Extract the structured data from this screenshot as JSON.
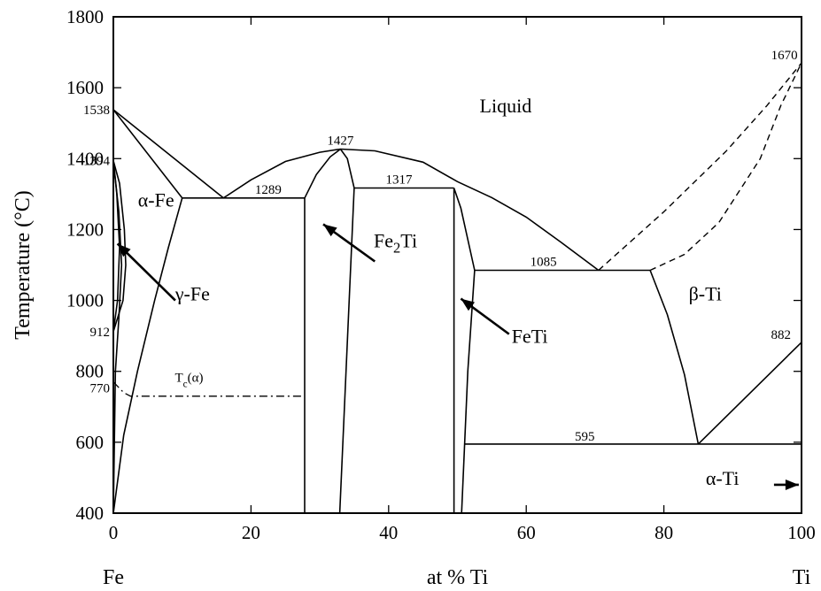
{
  "chart_data": {
    "type": "line",
    "title": "",
    "xlabel": "at % Ti",
    "ylabel": "Temperature (°C)",
    "xlim": [
      0,
      100
    ],
    "ylim": [
      400,
      1800
    ],
    "xticks": [
      0,
      20,
      40,
      60,
      80,
      100
    ],
    "yticks": [
      400,
      600,
      800,
      1000,
      1200,
      1400,
      1600,
      1800
    ],
    "endpoint_labels": {
      "left": "Fe",
      "right": "Ti"
    },
    "phase_labels": [
      {
        "text": "Liquid",
        "x": 57,
        "y": 1530
      },
      {
        "text": "α-Fe",
        "x": 6.2,
        "y": 1265
      },
      {
        "text": "γ-Fe",
        "x": 11.5,
        "y": 1000
      },
      {
        "text": "Fe",
        "sub": "2",
        "after": "Ti",
        "x": 41,
        "y": 1150
      },
      {
        "text": "FeTi",
        "x": 60.5,
        "y": 880
      },
      {
        "text": "β-Ti",
        "x": 86,
        "y": 1000
      },
      {
        "text": "α-Ti",
        "x": 88.5,
        "y": 480
      }
    ],
    "curie_label": {
      "text": "T",
      "sub": "c",
      "after": "(α)",
      "x": 11,
      "y": 770
    },
    "temperature_annotations": [
      {
        "text": "1538",
        "x": 0,
        "y": 1538
      },
      {
        "text": "1394",
        "x": 0,
        "y": 1394
      },
      {
        "text": "912",
        "x": 0,
        "y": 912
      },
      {
        "text": "770",
        "x": 0,
        "y": 770
      },
      {
        "text": "1289",
        "x": 22.5,
        "y": 1289
      },
      {
        "text": "1427",
        "x": 33,
        "y": 1427
      },
      {
        "text": "1317",
        "x": 41.5,
        "y": 1317
      },
      {
        "text": "1085",
        "x": 62.5,
        "y": 1085
      },
      {
        "text": "595",
        "x": 68.5,
        "y": 595
      },
      {
        "text": "882",
        "x": 97,
        "y": 882
      },
      {
        "text": "1670",
        "x": 97.5,
        "y": 1670
      }
    ],
    "arrows": [
      {
        "from": [
          9,
          1000
        ],
        "to": [
          0.6,
          1160
        ]
      },
      {
        "from": [
          38,
          1110
        ],
        "to": [
          30.5,
          1215
        ]
      },
      {
        "from": [
          57.5,
          905
        ],
        "to": [
          50.5,
          1005
        ]
      },
      {
        "from": [
          96,
          480
        ],
        "to": [
          99.6,
          480
        ]
      }
    ],
    "series": [
      {
        "style": "solid",
        "points": [
          [
            0,
            1538
          ],
          [
            10,
            1289
          ]
        ]
      },
      {
        "style": "solid",
        "points": [
          [
            0,
            1538
          ],
          [
            16,
            1289
          ]
        ]
      },
      {
        "style": "solid",
        "points": [
          [
            10,
            1289
          ],
          [
            27.8,
            1289
          ]
        ]
      },
      {
        "style": "solid",
        "points": [
          [
            16,
            1289
          ],
          [
            20,
            1340
          ],
          [
            25,
            1392
          ],
          [
            30,
            1418
          ],
          [
            33,
            1427
          ],
          [
            38,
            1422
          ],
          [
            45,
            1390
          ],
          [
            50,
            1335
          ],
          [
            55,
            1290
          ],
          [
            60,
            1235
          ],
          [
            65,
            1165
          ],
          [
            70.5,
            1085
          ]
        ]
      },
      {
        "style": "solid",
        "points": [
          [
            0,
            1394
          ],
          [
            0.9,
            1330
          ],
          [
            1.6,
            1200
          ],
          [
            1.8,
            1100
          ],
          [
            1.4,
            1000
          ],
          [
            0,
            912
          ]
        ]
      },
      {
        "style": "solid",
        "points": [
          [
            0,
            1394
          ],
          [
            0.5,
            1300
          ],
          [
            0.9,
            1150
          ],
          [
            0.6,
            1000
          ],
          [
            0,
            912
          ]
        ]
      },
      {
        "style": "solid",
        "points": [
          [
            0,
            400
          ],
          [
            1.5,
            620
          ],
          [
            3.5,
            800
          ],
          [
            6,
            1000
          ],
          [
            8,
            1150
          ],
          [
            10,
            1289
          ]
        ]
      },
      {
        "style": "solid",
        "points": [
          [
            0,
            1394
          ],
          [
            0.8,
            1250
          ],
          [
            1.2,
            1100
          ],
          [
            0.8,
            950
          ],
          [
            0.3,
            800
          ],
          [
            0,
            400
          ]
        ]
      },
      {
        "style": "solid",
        "points": [
          [
            27.8,
            1289
          ],
          [
            27.8,
            400
          ]
        ]
      },
      {
        "style": "solid",
        "points": [
          [
            27.8,
            1289
          ],
          [
            29.5,
            1355
          ],
          [
            31.5,
            1405
          ],
          [
            33,
            1427
          ]
        ]
      },
      {
        "style": "solid",
        "points": [
          [
            33,
            1427
          ],
          [
            34,
            1400
          ],
          [
            35,
            1317
          ],
          [
            32.9,
            400
          ]
        ]
      },
      {
        "style": "solid",
        "points": [
          [
            35,
            1317
          ],
          [
            49.5,
            1317
          ]
        ]
      },
      {
        "style": "solid",
        "points": [
          [
            49.5,
            1317
          ],
          [
            49.5,
            400
          ]
        ]
      },
      {
        "style": "solid",
        "points": [
          [
            49.5,
            1317
          ],
          [
            50.5,
            1260
          ],
          [
            52.5,
            1085
          ],
          [
            51.5,
            800
          ],
          [
            50.6,
            400
          ]
        ]
      },
      {
        "style": "solid",
        "points": [
          [
            52.5,
            1085
          ],
          [
            78,
            1085
          ]
        ]
      },
      {
        "style": "solid",
        "points": [
          [
            78,
            1085
          ],
          [
            80.5,
            960
          ],
          [
            83,
            790
          ],
          [
            85,
            595
          ]
        ]
      },
      {
        "style": "solid",
        "points": [
          [
            51,
            595
          ],
          [
            100,
            595
          ]
        ]
      },
      {
        "style": "solid",
        "points": [
          [
            85,
            595
          ],
          [
            100,
            882
          ]
        ]
      },
      {
        "style": "dashed",
        "points": [
          [
            70.5,
            1085
          ],
          [
            80,
            1250
          ],
          [
            89,
            1420
          ],
          [
            95,
            1550
          ],
          [
            100,
            1670
          ]
        ]
      },
      {
        "style": "dashed",
        "points": [
          [
            78,
            1085
          ],
          [
            83,
            1130
          ],
          [
            88,
            1220
          ],
          [
            94,
            1400
          ],
          [
            97,
            1550
          ],
          [
            100,
            1670
          ]
        ]
      },
      {
        "style": "dashdot",
        "points": [
          [
            0,
            770
          ],
          [
            1.5,
            740
          ],
          [
            2.5,
            730
          ],
          [
            27.8,
            730
          ]
        ]
      }
    ]
  }
}
